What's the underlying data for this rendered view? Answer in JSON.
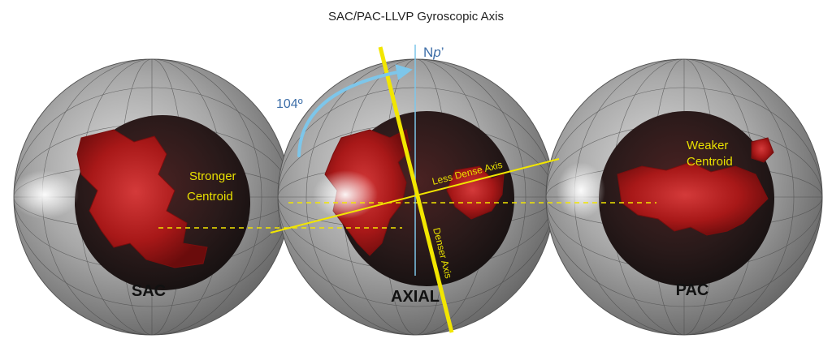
{
  "title": "SAC/PAC-LLVP Gyroscopic Axis",
  "globes": {
    "left_label": "SAC",
    "center_label": "AXIAL",
    "right_label": "PAC"
  },
  "annotations": {
    "angle": "104º",
    "north_prefix": "N",
    "north_italic": "p",
    "north_suffix": "’",
    "stronger_line1": "Stronger",
    "stronger_line2": "Centroid",
    "weaker_line1": "Weaker",
    "weaker_line2": "Centroid",
    "less_dense_axis": "Less Dense Axis",
    "denser_axis": "Denser Axis"
  },
  "colors": {
    "yellow": "#f2e600",
    "label_yellow": "#e8e000",
    "light_blue": "#7dc6ea",
    "north_blue": "#3d6ea8",
    "blob_red": "#b01c1c"
  }
}
